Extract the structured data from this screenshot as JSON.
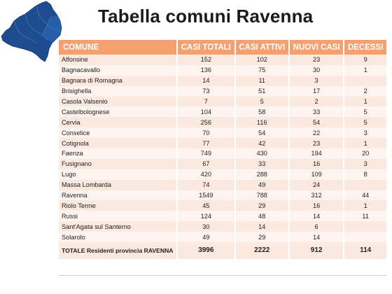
{
  "title": "Tabella comuni Ravenna",
  "map_color": "#1d4d8f",
  "header_color": "#f6a06f",
  "columns": [
    "COMUNE",
    "CASI TOTALI",
    "CASI ATTIVI",
    "NUOVI CASI",
    "DECESSI"
  ],
  "rows": [
    [
      "Alfonsine",
      "152",
      "102",
      "23",
      "9"
    ],
    [
      "Bagnacavallo",
      "136",
      "75",
      "30",
      "1"
    ],
    [
      "Bagnara di Romagna",
      "14",
      "11",
      "3",
      ""
    ],
    [
      "Brisighella",
      "73",
      "51",
      "17",
      "2"
    ],
    [
      "Casola Valsenio",
      "7",
      "5",
      "2",
      "1"
    ],
    [
      "Castelbolognese",
      "104",
      "58",
      "33",
      "5"
    ],
    [
      "Cervia",
      "256",
      "116",
      "54",
      "5"
    ],
    [
      "Conselice",
      "70",
      "54",
      "22",
      "3"
    ],
    [
      "Cotignola",
      "77",
      "42",
      "23",
      "1"
    ],
    [
      "Faenza",
      "749",
      "430",
      "194",
      "20"
    ],
    [
      "Fusignano",
      "67",
      "33",
      "16",
      "3"
    ],
    [
      "Lugo",
      "420",
      "288",
      "109",
      "8"
    ],
    [
      "Massa Lombarda",
      "74",
      "49",
      "24",
      ""
    ],
    [
      "Ravenna",
      "1549",
      "788",
      "312",
      "44"
    ],
    [
      "Riolo Terme",
      "45",
      "29",
      "16",
      "1"
    ],
    [
      "Russi",
      "124",
      "48",
      "14",
      "11"
    ],
    [
      "Sant'Agata sul Santerno",
      "30",
      "14",
      "6",
      ""
    ],
    [
      "Solarolo",
      "49",
      "29",
      "14",
      ""
    ]
  ],
  "total": [
    "TOTALE Residenti provincia RAVENNA",
    "3996",
    "2222",
    "912",
    "114"
  ]
}
